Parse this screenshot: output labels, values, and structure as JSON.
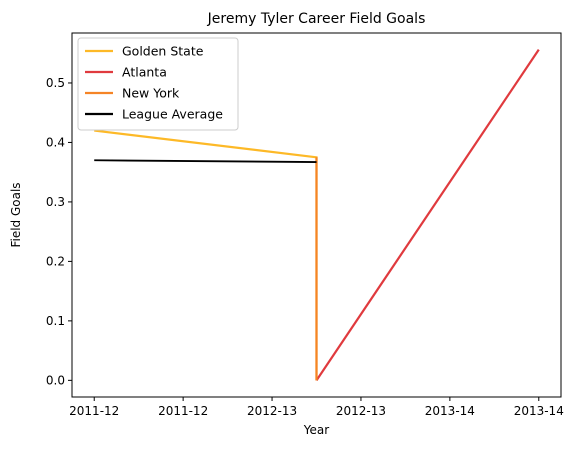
{
  "chart_data": {
    "type": "line",
    "title": "Jeremy Tyler Career Field Goals",
    "xlabel": "Year",
    "ylabel": "Field Goals",
    "x_tick_labels": [
      "2011-12",
      "2011-12",
      "2012-13",
      "2012-13",
      "2013-14",
      "2013-14"
    ],
    "x_ticks": [
      0,
      1,
      2,
      3,
      4,
      5
    ],
    "xlim": [
      -0.25,
      5.25
    ],
    "ylim": [
      -0.028,
      0.584
    ],
    "y_ticks": [
      0.0,
      0.1,
      0.2,
      0.3,
      0.4,
      0.5
    ],
    "y_tick_labels": [
      "0.0",
      "0.1",
      "0.2",
      "0.3",
      "0.4",
      "0.5"
    ],
    "grid": false,
    "legend_position": "top-left",
    "series": [
      {
        "name": "Golden State",
        "color": "#FDB927",
        "x": [
          0,
          2.5,
          2.5
        ],
        "y": [
          0.42,
          0.375,
          0.0
        ]
      },
      {
        "name": "Atlanta",
        "color": "#E03A3E",
        "x": [
          2.5,
          5
        ],
        "y": [
          0.0,
          0.556
        ]
      },
      {
        "name": "New York",
        "color": "#F58426",
        "x": [
          2.5,
          2.5
        ],
        "y": [
          0.375,
          0.0
        ]
      },
      {
        "name": "League Average",
        "color": "#000000",
        "x": [
          0,
          2.5
        ],
        "y": [
          0.37,
          0.367
        ]
      }
    ]
  }
}
